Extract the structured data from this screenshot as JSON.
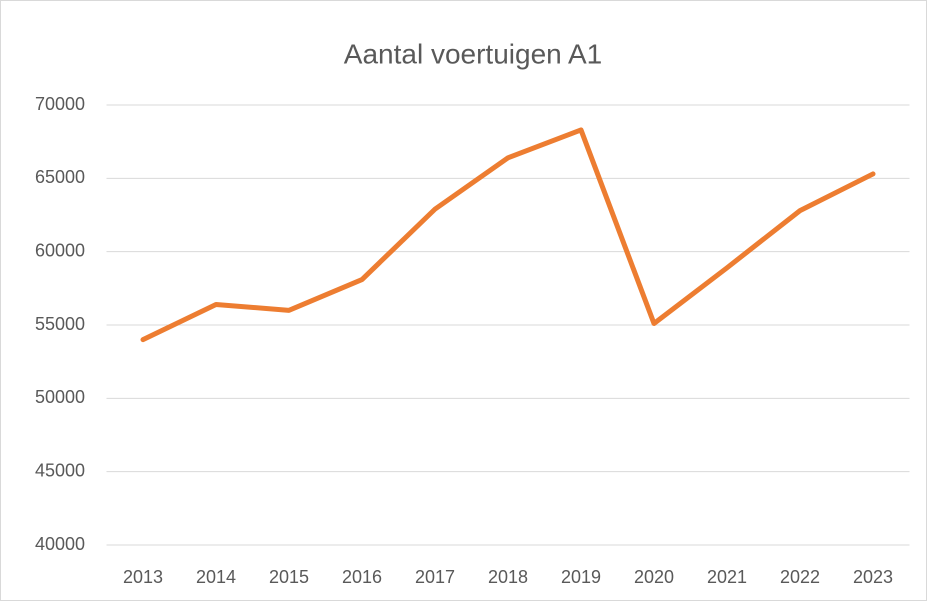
{
  "chart_data": {
    "type": "line",
    "title": "Aantal voertuigen A1",
    "categories": [
      "2013",
      "2014",
      "2015",
      "2016",
      "2017",
      "2018",
      "2019",
      "2020",
      "2021",
      "2022",
      "2023"
    ],
    "series": [
      {
        "name": "Aantal voertuigen A1",
        "color": "#ed7d31",
        "values": [
          54000,
          56400,
          56000,
          58100,
          62900,
          66400,
          68300,
          55100,
          58900,
          62800,
          65300
        ]
      }
    ],
    "ylim": [
      40000,
      70000
    ],
    "yticks": [
      40000,
      45000,
      50000,
      55000,
      60000,
      65000,
      70000
    ],
    "grid": true
  }
}
